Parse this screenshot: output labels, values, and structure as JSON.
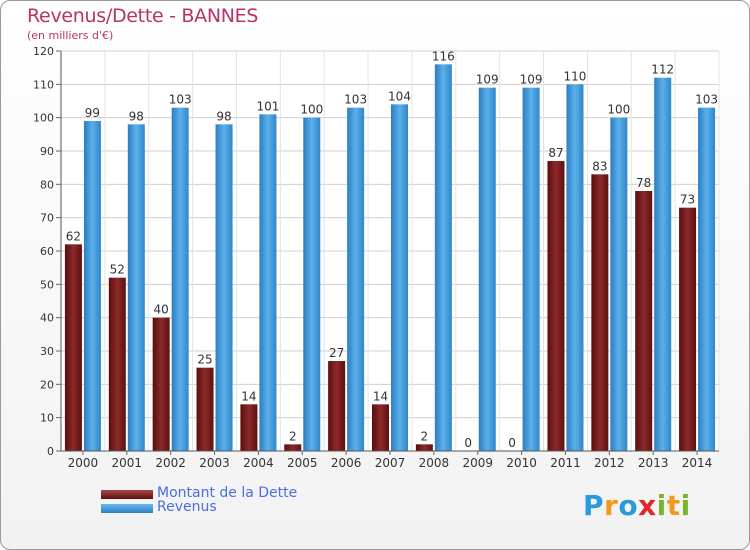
{
  "header": {
    "title": "Revenus/Dette - BANNES",
    "subtitle": "(en milliers d'€)"
  },
  "legend": {
    "items": [
      {
        "label": "Montant de la Dette",
        "color": "#7a1c1c"
      },
      {
        "label": "Revenus",
        "color": "#3d97da"
      }
    ]
  },
  "logo": {
    "text": "Proxiti",
    "letters": [
      {
        "char": "P",
        "color": "#2a9ad8"
      },
      {
        "char": "r",
        "color": "#f39a1e"
      },
      {
        "char": "o",
        "color": "#2a9ad8"
      },
      {
        "char": "x",
        "color": "#e2262a"
      },
      {
        "char": "i",
        "color": "#7ab531"
      },
      {
        "char": "t",
        "color": "#f39a1e"
      },
      {
        "char": "i",
        "color": "#7ab531"
      }
    ]
  },
  "chart_data": {
    "type": "bar",
    "title": "Revenus/Dette - BANNES",
    "subtitle": "(en milliers d'€)",
    "categories": [
      "2000",
      "2001",
      "2002",
      "2003",
      "2004",
      "2005",
      "2006",
      "2007",
      "2008",
      "2009",
      "2010",
      "2011",
      "2012",
      "2013",
      "2014"
    ],
    "series": [
      {
        "name": "Montant de la Dette",
        "color": "#7a1c1c",
        "values": [
          62,
          52,
          40,
          25,
          14,
          2,
          27,
          14,
          2,
          0,
          0,
          87,
          83,
          78,
          73
        ]
      },
      {
        "name": "Revenus",
        "color": "#3d97da",
        "values": [
          99,
          98,
          103,
          98,
          101,
          100,
          103,
          104,
          116,
          109,
          109,
          110,
          100,
          112,
          103
        ]
      }
    ],
    "ylim": [
      0,
      120
    ],
    "yticks": [
      0,
      10,
      20,
      30,
      40,
      50,
      60,
      70,
      80,
      90,
      100,
      110,
      120
    ],
    "grid": true,
    "legend_position": "bottom-left",
    "data_labels": true
  }
}
